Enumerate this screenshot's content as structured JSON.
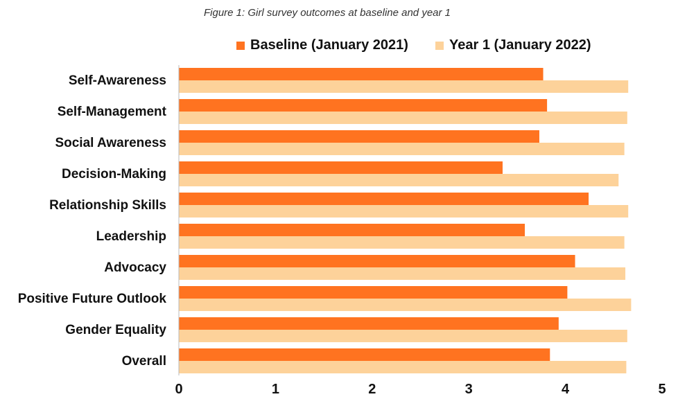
{
  "caption": "Figure 1: Girl survey outcomes at baseline and year 1",
  "colors": {
    "baseline": "#FF7320",
    "year1": "#FDD29A",
    "axis": "#bbbbbb"
  },
  "chart_data": {
    "type": "bar",
    "orientation": "horizontal",
    "title": "",
    "xlabel": "",
    "ylabel": "",
    "xlim": [
      0,
      5
    ],
    "xticks": [
      "0",
      "1",
      "2",
      "3",
      "4",
      "5"
    ],
    "grid": false,
    "legend_position": "top",
    "categories": [
      "Self-Awareness",
      "Self-Management",
      "Social Awareness",
      "Decision-Making",
      "Relationship Skills",
      "Leadership",
      "Advocacy",
      "Positive Future Outlook",
      "Gender Equality",
      "Overall"
    ],
    "series": [
      {
        "name": "Baseline (January 2021)",
        "values": [
          3.77,
          3.81,
          3.73,
          3.35,
          4.24,
          3.58,
          4.1,
          4.02,
          3.93,
          3.84
        ]
      },
      {
        "name": "Year 1 (January 2022)",
        "values": [
          4.65,
          4.64,
          4.61,
          4.55,
          4.65,
          4.61,
          4.62,
          4.68,
          4.64,
          4.63
        ]
      }
    ]
  }
}
